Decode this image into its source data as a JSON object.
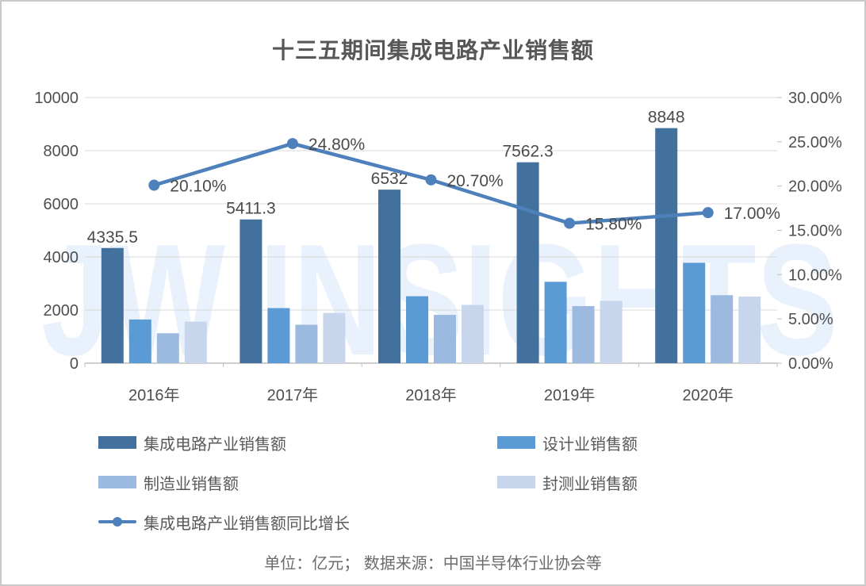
{
  "watermark": {
    "text": "JW INSIGHTS",
    "color": "#E9F1FC"
  },
  "chart_data": {
    "type": "bar",
    "subtype": "clustered-bar-with-line",
    "title": "十三五期间集成电路产业销售额",
    "categories": [
      "2016年",
      "2017年",
      "2018年",
      "2019年",
      "2020年"
    ],
    "series": [
      {
        "kind": "bar",
        "name": "集成电路产业销售额",
        "color": "#41719C",
        "values": [
          4335.5,
          5411.3,
          6532,
          7562.3,
          8848
        ],
        "labels": [
          "4335.5",
          "5411.3",
          "6532",
          "7562.3",
          "8848"
        ]
      },
      {
        "kind": "bar",
        "name": "设计业销售额",
        "color": "#5B9BD5",
        "values": [
          1644.3,
          2073.5,
          2519.3,
          3063.5,
          3778.4
        ]
      },
      {
        "kind": "bar",
        "name": "制造业销售额",
        "color": "#9CB9E0",
        "values": [
          1126.9,
          1448.1,
          1818.2,
          2149.1,
          2560.1
        ]
      },
      {
        "kind": "bar",
        "name": "封测业销售额",
        "color": "#C7D6EC",
        "values": [
          1564.3,
          1889.7,
          2193.9,
          2349.7,
          2509.5
        ]
      },
      {
        "kind": "line",
        "name": "集成电路产业销售额同比增长",
        "color": "#4E80BC",
        "values": [
          20.1,
          24.8,
          20.7,
          15.8,
          17.0
        ],
        "labels": [
          "20.10%",
          "24.80%",
          "20.70%",
          "15.80%",
          "17.00%"
        ]
      }
    ],
    "left_axis": {
      "min": 0,
      "max": 10000,
      "step": 2000,
      "ticks": [
        "0",
        "2000",
        "4000",
        "6000",
        "8000",
        "10000"
      ]
    },
    "right_axis": {
      "min": 0,
      "max": 30,
      "step": 5,
      "ticks": [
        "0.00%",
        "5.00%",
        "10.00%",
        "15.00%",
        "20.00%",
        "25.00%",
        "30.00%"
      ]
    },
    "grid": true,
    "legend_position": "bottom",
    "colors": {
      "text": "#595959",
      "tick_text": "#4f4f4f",
      "grid": "#D9D9D9",
      "axis": "#BFBFBF"
    }
  },
  "footnote": "单位：亿元； 数据来源：中国半导体行业协会等"
}
